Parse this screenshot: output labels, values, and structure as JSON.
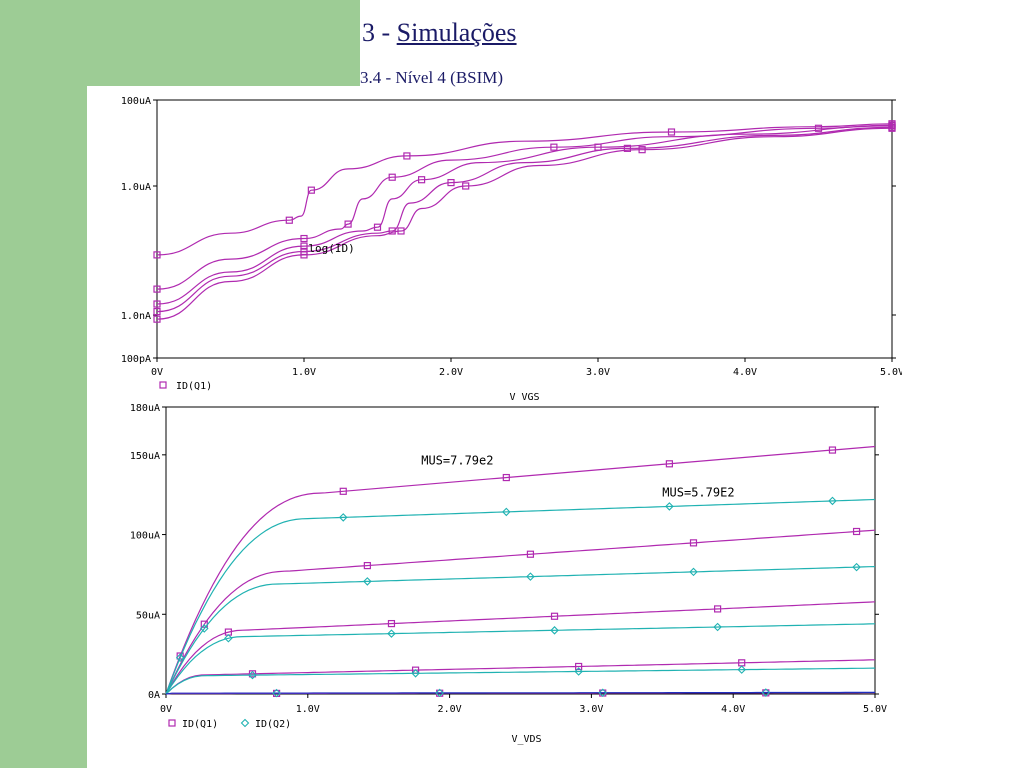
{
  "slide": {
    "title_prefix": "3 - ",
    "title_link": "Simulações",
    "subtitle": "3.4 - Nível 4  (BSIM)",
    "colors": {
      "green": "#9dcc95",
      "purple": "#b02ab0",
      "teal": "#20b2b2",
      "blue": "#2030c0",
      "title": "#1a1a66"
    }
  },
  "chart_data": [
    {
      "type": "line",
      "scale": "log-y",
      "xlim": [
        0,
        5
      ],
      "ylim": [
        1e-10,
        0.0001
      ],
      "x_ticks": [
        "0V",
        "1.0V",
        "2.0V",
        "3.0V",
        "4.0V",
        "5.0V"
      ],
      "y_ticks": [
        "100uA",
        "1.0uA",
        "1.0nA",
        "100pA"
      ],
      "y_tick_values": [
        0.0001,
        1e-06,
        1e-09,
        1e-10
      ],
      "xlabel": "V_VGS",
      "legend": [
        "ID(Q1)"
      ],
      "annotation": "log(ID)",
      "series": [
        {
          "x": [
            0,
            0.5,
            0.9,
            0.98,
            1.05,
            1.3,
            1.7,
            2.5,
            3.5,
            4.5,
            5.0
          ],
          "y": [
            2.5e-08,
            8e-08,
            1.6e-07,
            2e-07,
            8e-07,
            2.5e-06,
            5e-06,
            1.1e-05,
            1.8e-05,
            2.4e-05,
            2.8e-05
          ]
        },
        {
          "x": [
            0,
            0.5,
            1.0,
            1.25,
            1.3,
            1.4,
            1.6,
            2.0,
            2.7,
            3.5,
            4.5,
            5.0
          ],
          "y": [
            4e-09,
            2e-08,
            6e-08,
            1e-07,
            1.3e-07,
            5e-07,
            1.6e-06,
            4e-06,
            8e-06,
            1.4e-05,
            2.2e-05,
            2.6e-05
          ]
        },
        {
          "x": [
            0,
            0.5,
            1.0,
            1.4,
            1.5,
            1.6,
            1.8,
            2.2,
            3.0,
            4.0,
            5.0
          ],
          "y": [
            1.8e-09,
            1e-08,
            4e-08,
            9e-08,
            1.1e-07,
            5e-07,
            1.4e-06,
            3.5e-06,
            8e-06,
            1.6e-05,
            2.5e-05
          ]
        },
        {
          "x": [
            0,
            0.5,
            1.0,
            1.5,
            1.6,
            1.72,
            2.0,
            2.5,
            3.2,
            4.2,
            5.0
          ],
          "y": [
            1.2e-09,
            8e-09,
            3e-08,
            8e-08,
            9e-08,
            4e-07,
            1.2e-06,
            3.5e-06,
            7.5e-06,
            1.5e-05,
            2.3e-05
          ]
        },
        {
          "x": [
            0,
            0.5,
            1.0,
            1.5,
            1.66,
            1.8,
            2.1,
            2.6,
            3.3,
            4.2,
            5.0
          ],
          "y": [
            8e-10,
            6e-09,
            2.5e-08,
            7e-08,
            9e-08,
            3e-07,
            1e-06,
            3e-06,
            7e-06,
            1.4e-05,
            2.2e-05
          ]
        }
      ]
    },
    {
      "type": "line",
      "xlim": [
        0,
        5
      ],
      "ylim": [
        0,
        180
      ],
      "x_ticks": [
        "0V",
        "1.0V",
        "2.0V",
        "3.0V",
        "4.0V",
        "5.0V"
      ],
      "y_ticks": [
        "180uA",
        "150uA",
        "100uA",
        "50uA",
        "0A"
      ],
      "y_tick_values": [
        180,
        150,
        100,
        50,
        0
      ],
      "xlabel": "V_VDS",
      "legend": [
        "ID(Q1)",
        "ID(Q2)"
      ],
      "annotations": [
        {
          "text": "MUS=7.79e2",
          "x": 1.8,
          "y": 144
        },
        {
          "text": "MUS=5.79E2",
          "x": 3.5,
          "y": 124
        }
      ],
      "series": [
        {
          "name": "ID(Q1)",
          "color": "purple",
          "knee_x": 1.1,
          "sat_y": 126,
          "slope": 7.5
        },
        {
          "name": "ID(Q1)",
          "color": "purple",
          "knee_x": 0.85,
          "sat_y": 77,
          "slope": 6.2
        },
        {
          "name": "ID(Q1)",
          "color": "purple",
          "knee_x": 0.55,
          "sat_y": 40,
          "slope": 4.0
        },
        {
          "name": "ID(Q1)",
          "color": "purple",
          "knee_x": 0.28,
          "sat_y": 12,
          "slope": 2.0
        },
        {
          "name": "ID(Q1)",
          "color": "purple",
          "knee_x": 0.05,
          "sat_y": 0.3,
          "slope": 0.1
        },
        {
          "name": "ID(Q2)",
          "color": "teal",
          "knee_x": 1.0,
          "sat_y": 110,
          "slope": 3.0
        },
        {
          "name": "ID(Q2)",
          "color": "teal",
          "knee_x": 0.8,
          "sat_y": 69,
          "slope": 2.6
        },
        {
          "name": "ID(Q2)",
          "color": "teal",
          "knee_x": 0.55,
          "sat_y": 36,
          "slope": 1.8
        },
        {
          "name": "ID(Q2)",
          "color": "teal",
          "knee_x": 0.28,
          "sat_y": 11.5,
          "slope": 1.0
        },
        {
          "name": "ID(Q2)",
          "color": "blue",
          "knee_x": 0.05,
          "sat_y": 0.5,
          "slope": 0.1
        }
      ]
    }
  ]
}
